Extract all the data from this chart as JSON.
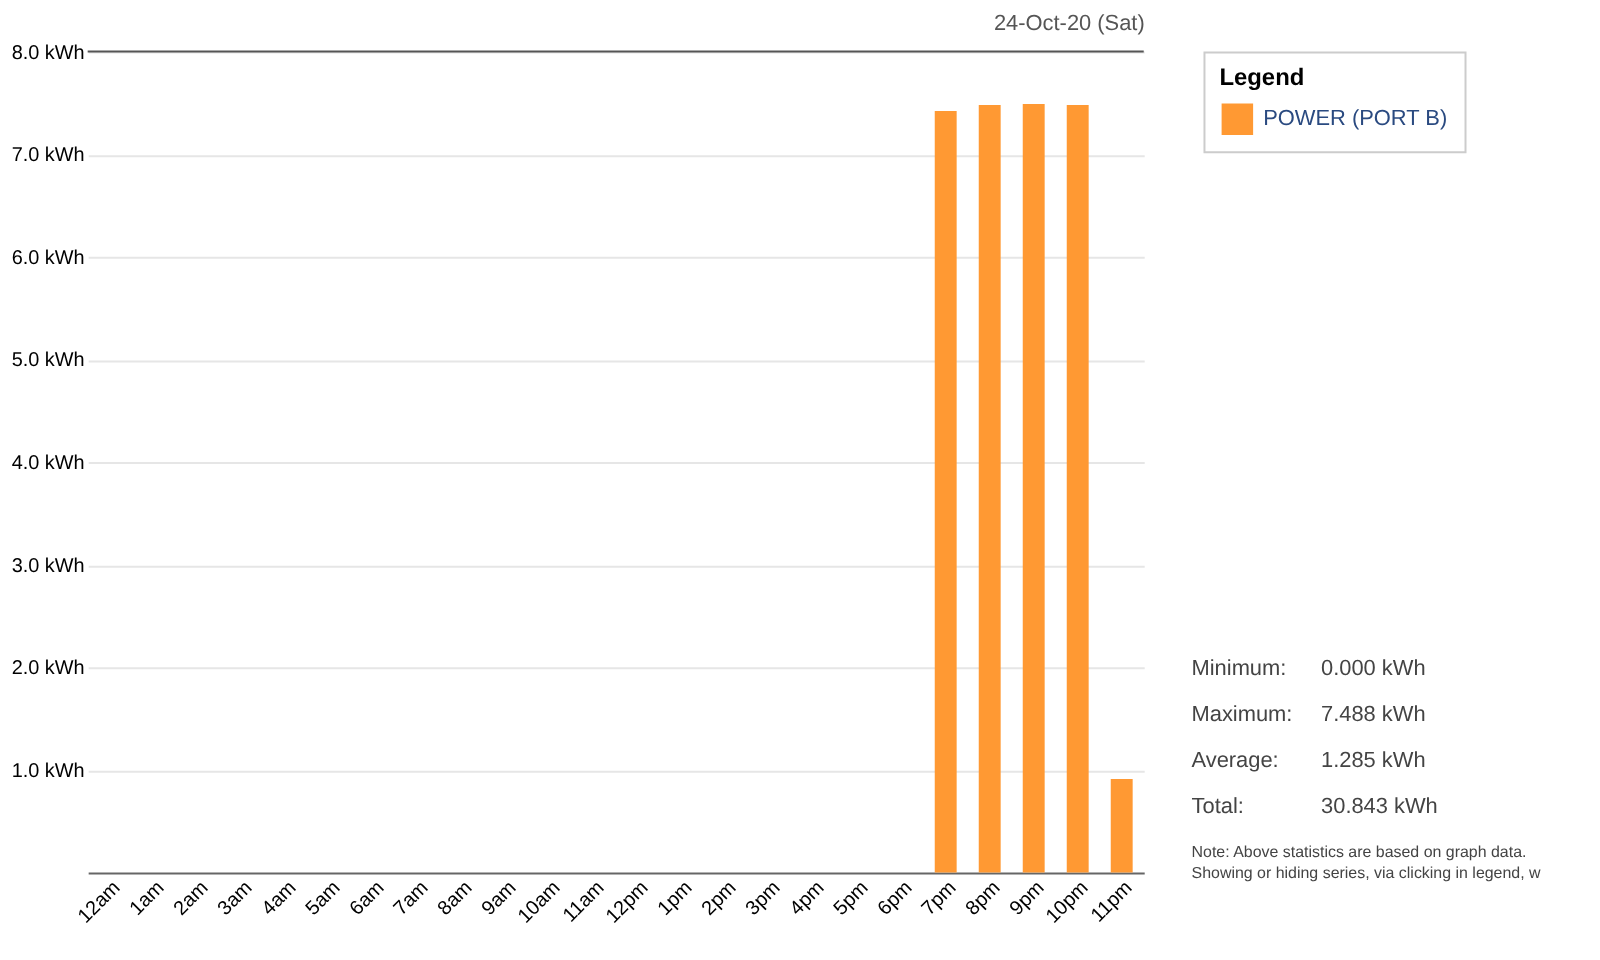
{
  "chart_data": {
    "type": "bar",
    "title": "24-Oct-20 (Sat)",
    "legend_title": "Legend",
    "categories": [
      "12am",
      "1am",
      "2am",
      "3am",
      "4am",
      "5am",
      "6am",
      "7am",
      "8am",
      "9am",
      "10am",
      "11am",
      "12pm",
      "1pm",
      "2pm",
      "3pm",
      "4pm",
      "5pm",
      "6pm",
      "7pm",
      "8pm",
      "9pm",
      "10pm",
      "11pm"
    ],
    "series": [
      {
        "name": "POWER (PORT B)",
        "color": "#ff9933",
        "values": [
          0,
          0,
          0,
          0,
          0,
          0,
          0,
          0,
          0,
          0,
          0,
          0,
          0,
          0,
          0,
          0,
          0,
          0,
          0,
          7.42,
          7.48,
          7.49,
          7.48,
          0.91
        ]
      }
    ],
    "ylim": [
      0,
      8
    ],
    "yticks": [
      {
        "value": 1,
        "label": "1.0 kWh"
      },
      {
        "value": 2,
        "label": "2.0 kWh"
      },
      {
        "value": 3,
        "label": "3.0 kWh"
      },
      {
        "value": 4,
        "label": "4.0 kWh"
      },
      {
        "value": 5,
        "label": "5.0 kWh"
      },
      {
        "value": 6,
        "label": "6.0 kWh"
      },
      {
        "value": 7,
        "label": "7.0 kWh"
      },
      {
        "value": 8,
        "label": "8.0 kWh"
      }
    ],
    "grid": "y",
    "legend": "right",
    "annotations": [
      "Minimum:",
      "0.000 kWh",
      "Maximum:",
      "7.488 kWh",
      "Average:",
      "1.285 kWh",
      "Total:",
      "30.843 kWh",
      "Note: Above statistics are based on graph data.",
      "Showing or hiding series, via clicking in legend, w"
    ]
  }
}
